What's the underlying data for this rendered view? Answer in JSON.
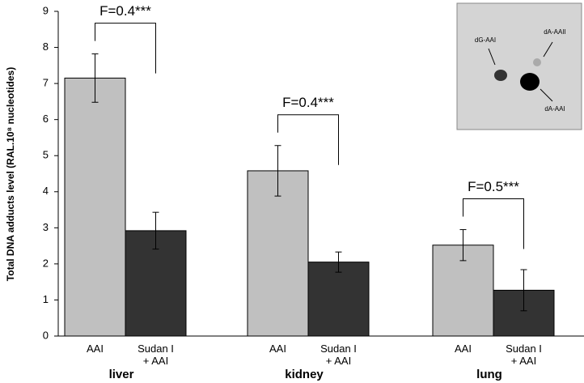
{
  "chart_data": {
    "type": "bar",
    "y_label": "Total DNA adducts level (RAL.10⁸ nucleotides)",
    "groups": [
      "liver",
      "kidney",
      "lung"
    ],
    "series": [
      {
        "name": "AAI",
        "color": "#c0c0c0",
        "values": [
          7.15,
          4.58,
          2.52
        ],
        "errors": [
          0.67,
          0.7,
          0.43
        ]
      },
      {
        "name": "Sudan I\n+ AAI",
        "color": "#333333",
        "values": [
          2.92,
          2.05,
          1.27
        ],
        "errors": [
          0.51,
          0.28,
          0.57
        ]
      }
    ],
    "annotations": [
      "F=0.4***",
      "F=0.4***",
      "F=0.5***"
    ],
    "ylim": [
      0,
      9
    ],
    "yticks": [
      0,
      1,
      2,
      3,
      4,
      5,
      6,
      7,
      8,
      9
    ],
    "inset_labels": [
      "dG-AAI",
      "dA-AAII",
      "dA-AAI"
    ]
  }
}
